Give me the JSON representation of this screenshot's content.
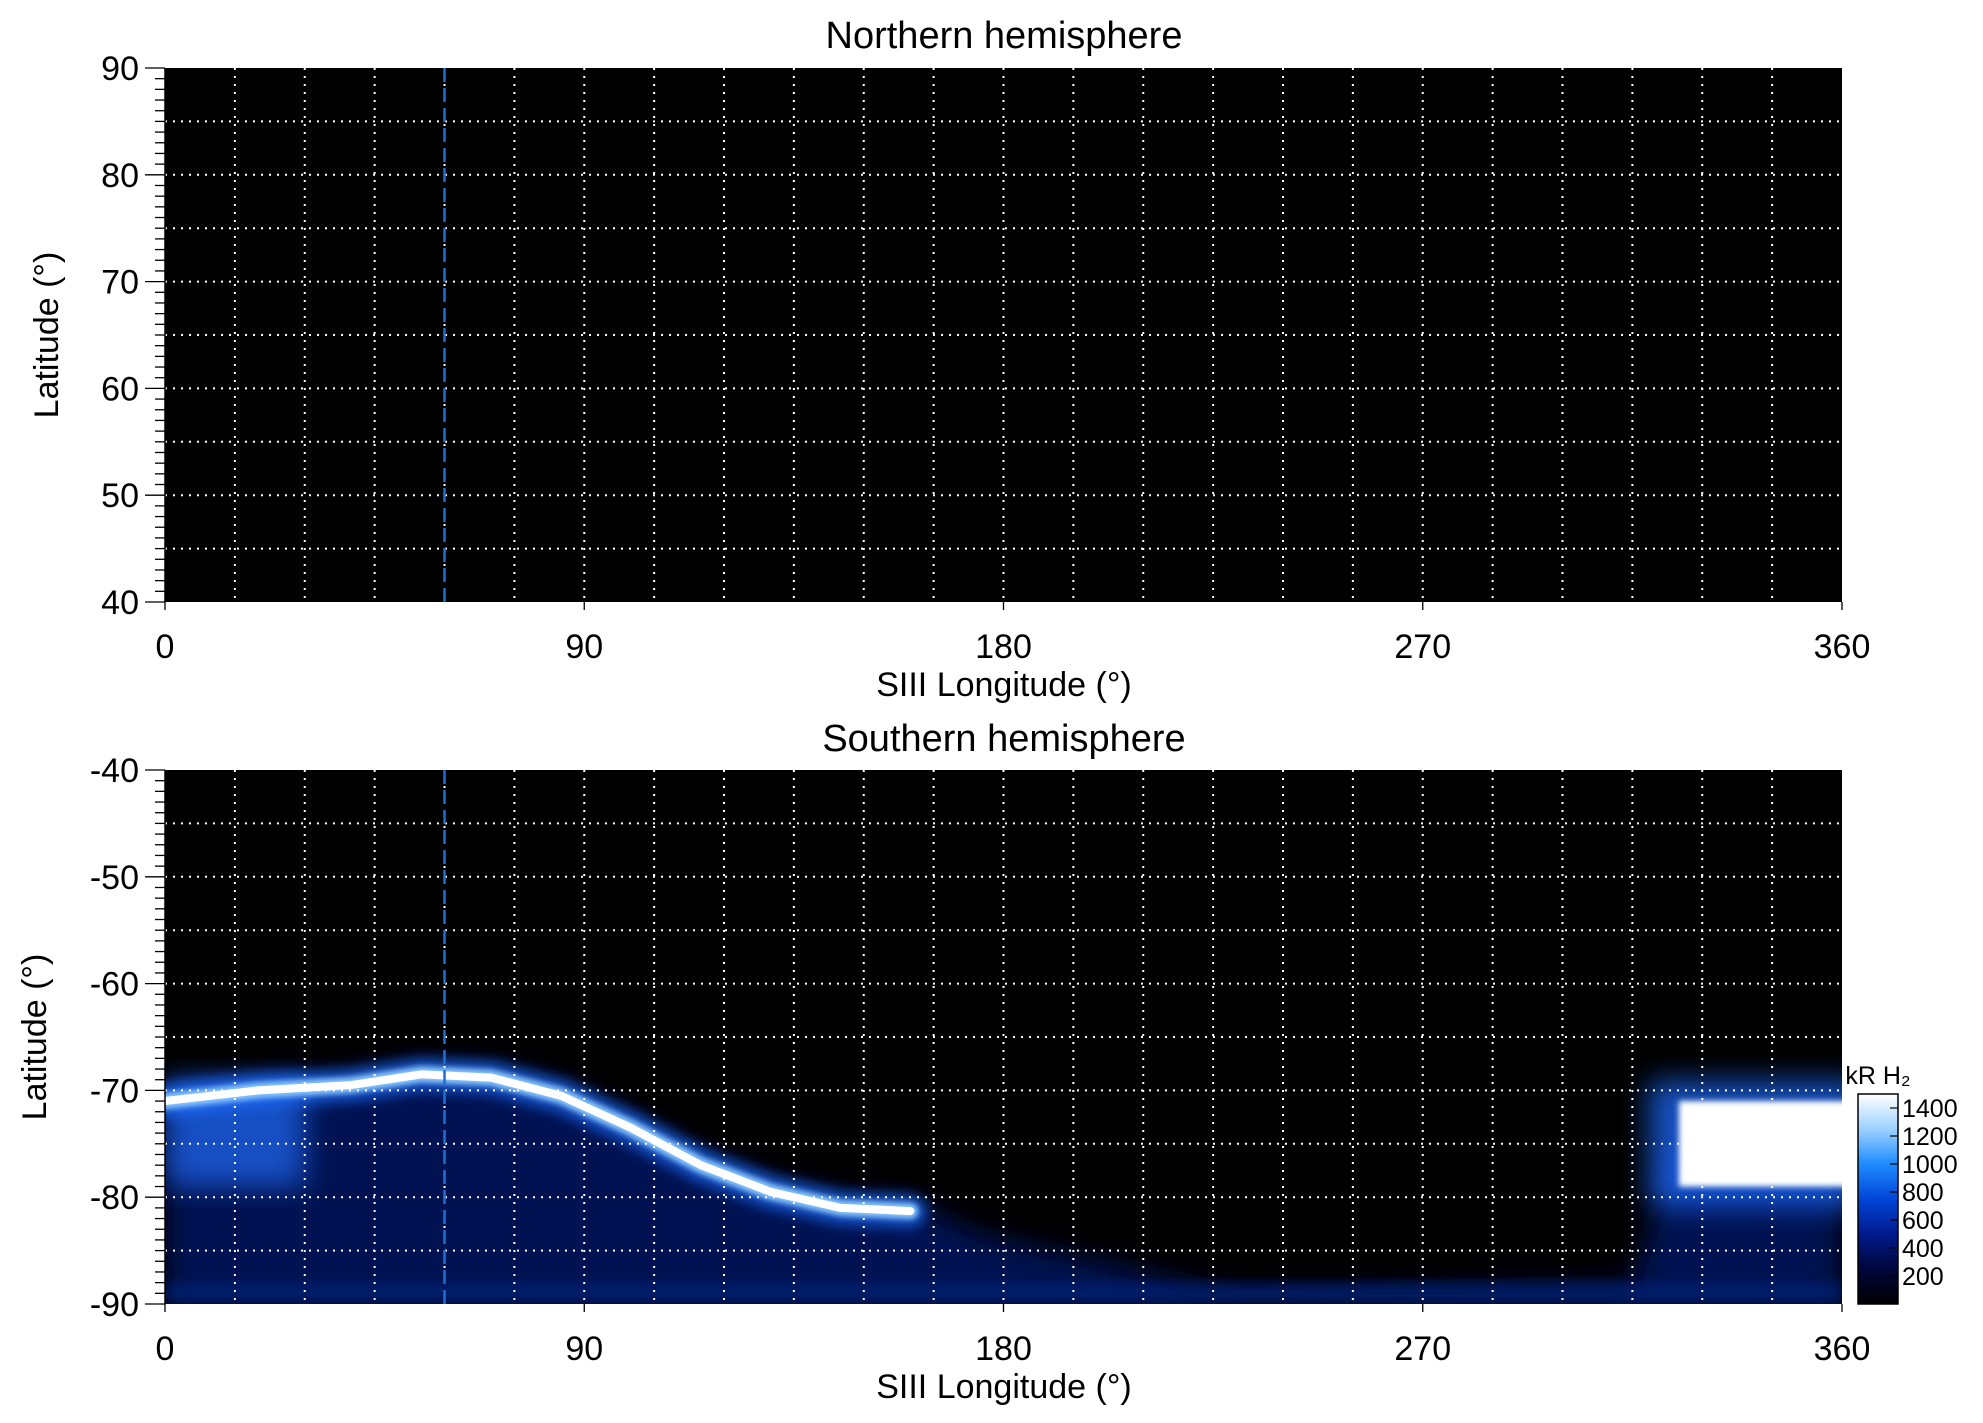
{
  "chart_data": [
    {
      "type": "heatmap",
      "title": "Northern hemisphere",
      "xlabel": "SIII Longitude (°)",
      "ylabel": "Latitude (°)",
      "xlim": [
        0,
        360
      ],
      "ylim": [
        40,
        90
      ],
      "xticks": [
        "0",
        "90",
        "180",
        "270",
        "360"
      ],
      "yticks": [
        "90",
        "80",
        "70",
        "60",
        "50",
        "40"
      ],
      "grid": true,
      "marker_longitude": 60,
      "marker_color": "#1f6fd0",
      "background_color": "#000000",
      "emission": "none"
    },
    {
      "type": "heatmap",
      "title": "Southern hemisphere",
      "xlabel": "SIII Longitude (°)",
      "ylabel": "Latitude (°)",
      "xlim": [
        0,
        360
      ],
      "ylim": [
        -90,
        -40
      ],
      "xticks": [
        "0",
        "90",
        "180",
        "270",
        "360"
      ],
      "yticks": [
        "-40",
        "-50",
        "-60",
        "-70",
        "-80",
        "-90"
      ],
      "grid": true,
      "marker_longitude": 60,
      "marker_color": "#1f6fd0",
      "background_color": "#000000",
      "auroral_oval": [
        {
          "lon": 0,
          "lat": -71
        },
        {
          "lon": 20,
          "lat": -70
        },
        {
          "lon": 40,
          "lat": -69.5
        },
        {
          "lon": 55,
          "lat": -68.5
        },
        {
          "lon": 70,
          "lat": -68.8
        },
        {
          "lon": 85,
          "lat": -70.5
        },
        {
          "lon": 100,
          "lat": -73.5
        },
        {
          "lon": 115,
          "lat": -77
        },
        {
          "lon": 130,
          "lat": -79.5
        },
        {
          "lon": 145,
          "lat": -81
        },
        {
          "lon": 160,
          "lat": -81.3
        }
      ],
      "bright_region": {
        "lon_start": 325,
        "lon_end": 360,
        "lat_top": -71,
        "lat_bottom": -79
      },
      "colorbar": {
        "label": "kR H₂",
        "ticks": [
          "1400",
          "1200",
          "1000",
          "800",
          "600",
          "400",
          "200"
        ],
        "range": [
          0,
          1500
        ],
        "colors": [
          "#000000",
          "#00063a",
          "#001a8c",
          "#0046d8",
          "#1e8cff",
          "#9cd2ff",
          "#ffffff"
        ]
      }
    }
  ]
}
